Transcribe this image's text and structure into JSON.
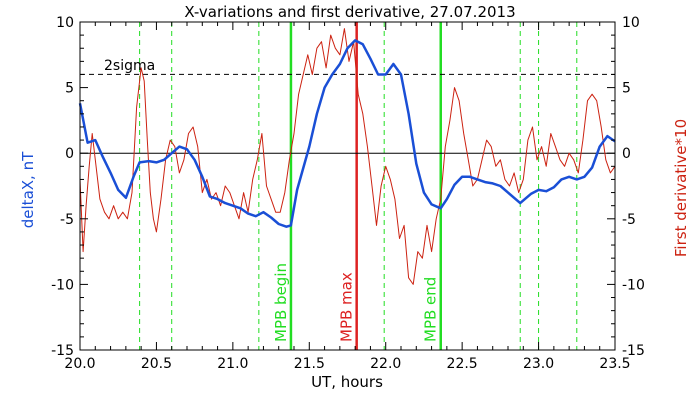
{
  "chart_data": {
    "type": "line",
    "title": "X-variations and first derivative, 27.07.2013",
    "xlabel": "UT, hours",
    "ylabel_left": "deltaX, nT",
    "ylabel_right": "First derivative*10",
    "xlim": [
      20.0,
      23.5
    ],
    "ylim": [
      -15,
      10
    ],
    "x_ticks": [
      "20.0",
      "20.5",
      "21.0",
      "21.5",
      "22.0",
      "22.5",
      "23.0",
      "23.5"
    ],
    "y_ticks": [
      "-15",
      "-10",
      "-5",
      "0",
      "5",
      "10"
    ],
    "threshold": {
      "label": "2sigma",
      "value": 6.0
    },
    "markers": [
      {
        "label": "MPB begin",
        "x": 21.38,
        "color": "#22dd22"
      },
      {
        "label": "MPB max",
        "x": 21.81,
        "color": "#dd2222"
      },
      {
        "label": "MPB end",
        "x": 22.36,
        "color": "#22dd22"
      }
    ],
    "dashed_lines": [
      20.39,
      20.6,
      21.17,
      21.38,
      21.99,
      22.36,
      22.88,
      23.0,
      23.25
    ],
    "colors": {
      "deltaX": "#1a4fd6",
      "derivative": "#cc2211",
      "accent": "#22dd22"
    },
    "series": [
      {
        "key": "deltaX",
        "x": [
          20.0,
          20.05,
          20.1,
          20.15,
          20.2,
          20.25,
          20.3,
          20.35,
          20.39,
          20.45,
          20.5,
          20.55,
          20.6,
          20.65,
          20.7,
          20.75,
          20.8,
          20.85,
          20.9,
          20.95,
          21.0,
          21.05,
          21.1,
          21.15,
          21.2,
          21.25,
          21.3,
          21.35,
          21.38,
          21.42,
          21.5,
          21.55,
          21.6,
          21.65,
          21.7,
          21.75,
          21.8,
          21.85,
          21.9,
          21.95,
          22.0,
          22.05,
          22.1,
          22.15,
          22.2,
          22.25,
          22.3,
          22.36,
          22.4,
          22.45,
          22.5,
          22.55,
          22.6,
          22.65,
          22.7,
          22.75,
          22.8,
          22.88,
          22.95,
          23.0,
          23.05,
          23.1,
          23.15,
          23.2,
          23.25,
          23.3,
          23.35,
          23.4,
          23.45,
          23.5
        ],
        "y": [
          3.8,
          0.8,
          1.0,
          -0.3,
          -1.5,
          -2.8,
          -3.4,
          -1.8,
          -0.7,
          -0.6,
          -0.7,
          -0.5,
          0.0,
          0.5,
          0.3,
          -0.5,
          -1.8,
          -3.3,
          -3.5,
          -3.8,
          -4.0,
          -4.2,
          -4.6,
          -4.8,
          -4.5,
          -4.9,
          -5.4,
          -5.6,
          -5.5,
          -2.8,
          0.5,
          3.0,
          5.0,
          6.0,
          6.8,
          8.0,
          8.6,
          8.3,
          7.2,
          6.0,
          6.0,
          6.8,
          6.0,
          3.0,
          -0.8,
          -3.0,
          -3.9,
          -4.2,
          -3.5,
          -2.4,
          -1.8,
          -1.8,
          -2.0,
          -2.2,
          -2.3,
          -2.5,
          -3.0,
          -3.8,
          -3.1,
          -2.8,
          -2.9,
          -2.6,
          -2.0,
          -1.8,
          -2.0,
          -1.8,
          -1.1,
          0.5,
          1.3,
          0.9
        ]
      },
      {
        "key": "derivative",
        "x": [
          20.0,
          20.02,
          20.04,
          20.06,
          20.08,
          20.1,
          20.13,
          20.16,
          20.19,
          20.22,
          20.25,
          20.28,
          20.31,
          20.34,
          20.37,
          20.4,
          20.42,
          20.44,
          20.46,
          20.48,
          20.5,
          20.53,
          20.56,
          20.59,
          20.62,
          20.65,
          20.68,
          20.71,
          20.74,
          20.77,
          20.8,
          20.83,
          20.86,
          20.89,
          20.92,
          20.95,
          20.98,
          21.01,
          21.04,
          21.07,
          21.1,
          21.13,
          21.16,
          21.19,
          21.22,
          21.25,
          21.28,
          21.31,
          21.34,
          21.37,
          21.4,
          21.43,
          21.46,
          21.49,
          21.52,
          21.55,
          21.58,
          21.61,
          21.64,
          21.67,
          21.7,
          21.73,
          21.76,
          21.79,
          21.82,
          21.85,
          21.88,
          21.91,
          21.94,
          21.97,
          22.0,
          22.03,
          22.06,
          22.09,
          22.12,
          22.15,
          22.18,
          22.21,
          22.24,
          22.27,
          22.3,
          22.33,
          22.36,
          22.39,
          22.42,
          22.45,
          22.48,
          22.51,
          22.54,
          22.57,
          22.6,
          22.63,
          22.66,
          22.69,
          22.72,
          22.75,
          22.78,
          22.81,
          22.84,
          22.87,
          22.9,
          22.93,
          22.96,
          22.99,
          23.02,
          23.05,
          23.08,
          23.11,
          23.14,
          23.17,
          23.2,
          23.23,
          23.26,
          23.29,
          23.32,
          23.35,
          23.38,
          23.41,
          23.44,
          23.47,
          23.5
        ],
        "y": [
          -2.0,
          -7.5,
          -4.0,
          -1.0,
          1.5,
          -0.5,
          -3.5,
          -4.5,
          -5.0,
          -4.0,
          -5.0,
          -4.5,
          -5.0,
          -3.0,
          3.5,
          6.5,
          5.5,
          1.0,
          -3.0,
          -5.0,
          -6.0,
          -3.5,
          -0.5,
          1.0,
          0.5,
          -1.5,
          -0.5,
          1.5,
          2.0,
          0.5,
          -3.0,
          -2.0,
          -3.5,
          -3.0,
          -4.0,
          -2.5,
          -3.0,
          -4.0,
          -5.0,
          -3.0,
          -4.5,
          -2.0,
          -0.5,
          1.5,
          -2.5,
          -3.5,
          -4.5,
          -4.5,
          -3.0,
          -0.5,
          1.5,
          4.5,
          6.0,
          7.5,
          6.0,
          8.0,
          8.5,
          6.5,
          9.0,
          8.0,
          7.5,
          9.5,
          7.0,
          8.5,
          4.5,
          3.0,
          0.5,
          -2.5,
          -5.5,
          -2.5,
          -1.0,
          -2.0,
          -3.5,
          -6.5,
          -5.5,
          -9.5,
          -10.0,
          -7.5,
          -8.0,
          -5.5,
          -7.5,
          -5.0,
          -3.5,
          0.5,
          2.5,
          5.0,
          4.0,
          1.5,
          -0.5,
          -2.5,
          -2.0,
          -0.5,
          1.0,
          0.5,
          -1.0,
          -0.5,
          -2.0,
          -2.5,
          -1.5,
          -3.0,
          -2.0,
          1.0,
          2.0,
          -0.5,
          0.5,
          -1.0,
          1.5,
          0.5,
          -0.5,
          -1.0,
          0.0,
          -0.5,
          -1.5,
          1.0,
          4.0,
          4.5,
          4.0,
          2.0,
          -0.5,
          -1.5,
          -1.0
        ]
      }
    ]
  }
}
